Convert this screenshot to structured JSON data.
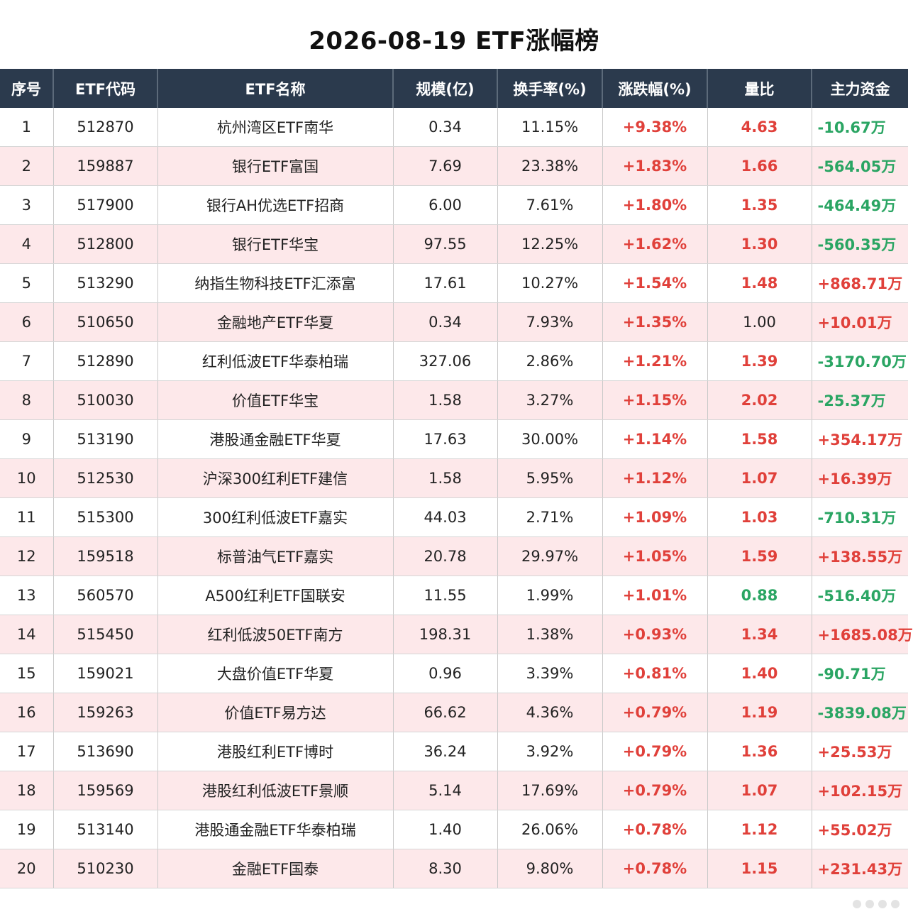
{
  "title": "2026-08-19 ETF涨幅榜",
  "columns": [
    "序号",
    "ETF代码",
    "ETF名称",
    "规模(亿)",
    "换手率(%)",
    "涨跌幅(%)",
    "量比",
    "主力资金"
  ],
  "rows": [
    {
      "rank": "1",
      "code": "512870",
      "name": "杭州湾区ETF南华",
      "size": "0.34",
      "turnover": "11.15%",
      "change": "+9.38%",
      "ratio": "4.63",
      "ratio_color": "red",
      "funds": "-10.67万",
      "funds_color": "green"
    },
    {
      "rank": "2",
      "code": "159887",
      "name": "银行ETF富国",
      "size": "7.69",
      "turnover": "23.38%",
      "change": "+1.83%",
      "ratio": "1.66",
      "ratio_color": "red",
      "funds": "-564.05万",
      "funds_color": "green"
    },
    {
      "rank": "3",
      "code": "517900",
      "name": "银行AH优选ETF招商",
      "size": "6.00",
      "turnover": "7.61%",
      "change": "+1.80%",
      "ratio": "1.35",
      "ratio_color": "red",
      "funds": "-464.49万",
      "funds_color": "green"
    },
    {
      "rank": "4",
      "code": "512800",
      "name": "银行ETF华宝",
      "size": "97.55",
      "turnover": "12.25%",
      "change": "+1.62%",
      "ratio": "1.30",
      "ratio_color": "red",
      "funds": "-560.35万",
      "funds_color": "green"
    },
    {
      "rank": "5",
      "code": "513290",
      "name": "纳指生物科技ETF汇添富",
      "size": "17.61",
      "turnover": "10.27%",
      "change": "+1.54%",
      "ratio": "1.48",
      "ratio_color": "red",
      "funds": "+868.71万",
      "funds_color": "red"
    },
    {
      "rank": "6",
      "code": "510650",
      "name": "金融地产ETF华夏",
      "size": "0.34",
      "turnover": "7.93%",
      "change": "+1.35%",
      "ratio": "1.00",
      "ratio_color": "plain",
      "funds": "+10.01万",
      "funds_color": "red"
    },
    {
      "rank": "7",
      "code": "512890",
      "name": "红利低波ETF华泰柏瑞",
      "size": "327.06",
      "turnover": "2.86%",
      "change": "+1.21%",
      "ratio": "1.39",
      "ratio_color": "red",
      "funds": "-3170.70万",
      "funds_color": "green"
    },
    {
      "rank": "8",
      "code": "510030",
      "name": "价值ETF华宝",
      "size": "1.58",
      "turnover": "3.27%",
      "change": "+1.15%",
      "ratio": "2.02",
      "ratio_color": "red",
      "funds": "-25.37万",
      "funds_color": "green"
    },
    {
      "rank": "9",
      "code": "513190",
      "name": "港股通金融ETF华夏",
      "size": "17.63",
      "turnover": "30.00%",
      "change": "+1.14%",
      "ratio": "1.58",
      "ratio_color": "red",
      "funds": "+354.17万",
      "funds_color": "red"
    },
    {
      "rank": "10",
      "code": "512530",
      "name": "沪深300红利ETF建信",
      "size": "1.58",
      "turnover": "5.95%",
      "change": "+1.12%",
      "ratio": "1.07",
      "ratio_color": "red",
      "funds": "+16.39万",
      "funds_color": "red"
    },
    {
      "rank": "11",
      "code": "515300",
      "name": "300红利低波ETF嘉实",
      "size": "44.03",
      "turnover": "2.71%",
      "change": "+1.09%",
      "ratio": "1.03",
      "ratio_color": "red",
      "funds": "-710.31万",
      "funds_color": "green"
    },
    {
      "rank": "12",
      "code": "159518",
      "name": "标普油气ETF嘉实",
      "size": "20.78",
      "turnover": "29.97%",
      "change": "+1.05%",
      "ratio": "1.59",
      "ratio_color": "red",
      "funds": "+138.55万",
      "funds_color": "red"
    },
    {
      "rank": "13",
      "code": "560570",
      "name": "A500红利ETF国联安",
      "size": "11.55",
      "turnover": "1.99%",
      "change": "+1.01%",
      "ratio": "0.88",
      "ratio_color": "green",
      "funds": "-516.40万",
      "funds_color": "green"
    },
    {
      "rank": "14",
      "code": "515450",
      "name": "红利低波50ETF南方",
      "size": "198.31",
      "turnover": "1.38%",
      "change": "+0.93%",
      "ratio": "1.34",
      "ratio_color": "red",
      "funds": "+1685.08万",
      "funds_color": "red"
    },
    {
      "rank": "15",
      "code": "159021",
      "name": "大盘价值ETF华夏",
      "size": "0.96",
      "turnover": "3.39%",
      "change": "+0.81%",
      "ratio": "1.40",
      "ratio_color": "red",
      "funds": "-90.71万",
      "funds_color": "green"
    },
    {
      "rank": "16",
      "code": "159263",
      "name": "价值ETF易方达",
      "size": "66.62",
      "turnover": "4.36%",
      "change": "+0.79%",
      "ratio": "1.19",
      "ratio_color": "red",
      "funds": "-3839.08万",
      "funds_color": "green"
    },
    {
      "rank": "17",
      "code": "513690",
      "name": "港股红利ETF博时",
      "size": "36.24",
      "turnover": "3.92%",
      "change": "+0.79%",
      "ratio": "1.36",
      "ratio_color": "red",
      "funds": "+25.53万",
      "funds_color": "red"
    },
    {
      "rank": "18",
      "code": "159569",
      "name": "港股红利低波ETF景顺",
      "size": "5.14",
      "turnover": "17.69%",
      "change": "+0.79%",
      "ratio": "1.07",
      "ratio_color": "red",
      "funds": "+102.15万",
      "funds_color": "red"
    },
    {
      "rank": "19",
      "code": "513140",
      "name": "港股通金融ETF华泰柏瑞",
      "size": "1.40",
      "turnover": "26.06%",
      "change": "+0.78%",
      "ratio": "1.12",
      "ratio_color": "red",
      "funds": "+55.02万",
      "funds_color": "red"
    },
    {
      "rank": "20",
      "code": "510230",
      "name": "金融ETF国泰",
      "size": "8.30",
      "turnover": "9.80%",
      "change": "+0.78%",
      "ratio": "1.15",
      "ratio_color": "red",
      "funds": "+231.43万",
      "funds_color": "red"
    }
  ],
  "colors": {
    "header_bg": "#2b3a4d",
    "row_alt_bg": "#fde8ea",
    "up": "#e0403a",
    "down": "#2aa563"
  }
}
